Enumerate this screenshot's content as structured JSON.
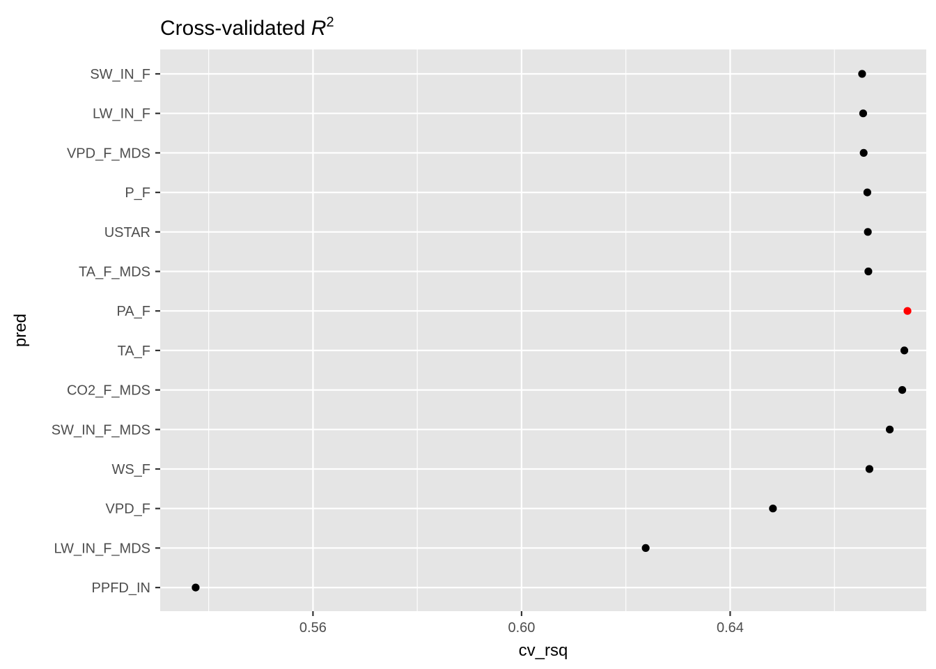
{
  "chart_data": {
    "type": "scatter",
    "title": "Cross-validated ",
    "title_math": "R",
    "title_sup": "2",
    "xlabel": "cv_rsq",
    "ylabel": "pred",
    "xlim": [
      0.5307,
      0.6776
    ],
    "x_ticks": [
      {
        "value": 0.56,
        "label": "0.56"
      },
      {
        "value": 0.6,
        "label": "0.60"
      },
      {
        "value": 0.64,
        "label": "0.64"
      }
    ],
    "x_minor_ticks": [
      0.54,
      0.58,
      0.62,
      0.66
    ],
    "points": [
      {
        "pred": "SW_IN_F",
        "cv_rsq": 0.6653,
        "highlight": false
      },
      {
        "pred": "LW_IN_F",
        "cv_rsq": 0.6655,
        "highlight": false
      },
      {
        "pred": "VPD_F_MDS",
        "cv_rsq": 0.6656,
        "highlight": false
      },
      {
        "pred": "P_F",
        "cv_rsq": 0.6663,
        "highlight": false
      },
      {
        "pred": "USTAR",
        "cv_rsq": 0.6664,
        "highlight": false
      },
      {
        "pred": "TA_F_MDS",
        "cv_rsq": 0.6665,
        "highlight": false
      },
      {
        "pred": "PA_F",
        "cv_rsq": 0.674,
        "highlight": true
      },
      {
        "pred": "TA_F",
        "cv_rsq": 0.6734,
        "highlight": false
      },
      {
        "pred": "CO2_F_MDS",
        "cv_rsq": 0.673,
        "highlight": false
      },
      {
        "pred": "SW_IN_F_MDS",
        "cv_rsq": 0.6706,
        "highlight": false
      },
      {
        "pred": "WS_F",
        "cv_rsq": 0.6667,
        "highlight": false
      },
      {
        "pred": "VPD_F",
        "cv_rsq": 0.6482,
        "highlight": false
      },
      {
        "pred": "LW_IN_F_MDS",
        "cv_rsq": 0.6238,
        "highlight": false
      },
      {
        "pred": "PPFD_IN",
        "cv_rsq": 0.5375,
        "highlight": false
      }
    ],
    "colors": {
      "panel": "#e5e5e5",
      "grid": "#ffffff",
      "point": "#000000",
      "highlight": "#ff0000",
      "tick_text": "#4d4d4d",
      "tick_mark": "#333333"
    },
    "grid": true,
    "legend": "none"
  }
}
